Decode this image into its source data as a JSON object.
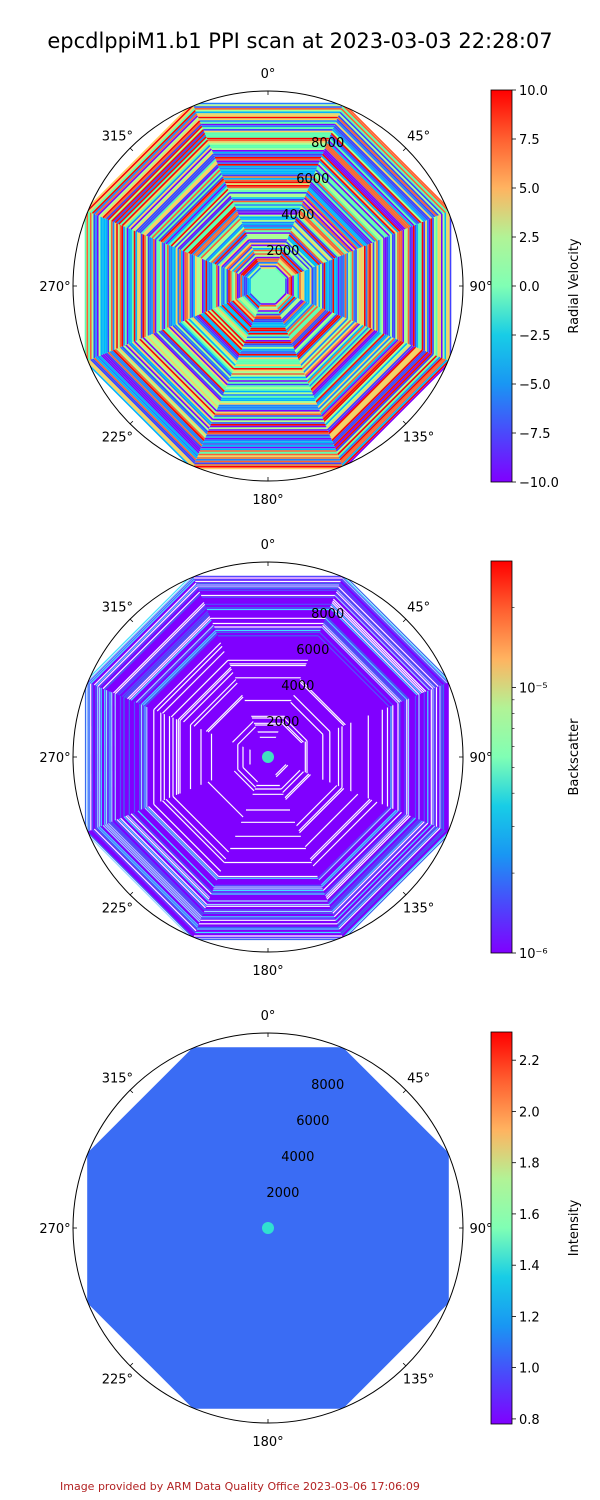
{
  "title": "epcdlppiM1.b1 PPI scan at 2023-03-03 22:28:07",
  "credit": "Image provided by ARM Data Quality Office 2023-03-06 17:06:09",
  "chart_data": [
    {
      "type": "heatmap",
      "projection": "polar",
      "colormap": "rainbow",
      "theta_ticks": [
        "0°",
        "45°",
        "90°",
        "135°",
        "180°",
        "225°",
        "270°",
        "315°"
      ],
      "r_ticks": [
        "2000",
        "4000",
        "6000",
        "8000"
      ],
      "r_tick_values": [
        2000,
        4000,
        6000,
        8000
      ],
      "r_max": 10000,
      "colorbar": {
        "label": "Radial Velocity",
        "scale": "linear",
        "range": [
          -10.0,
          10.0
        ],
        "ticks": [
          "10.0",
          "7.5",
          "5.0",
          "2.5",
          "0.0",
          "−2.5",
          "−5.0",
          "−7.5",
          "−10.0"
        ],
        "tick_values": [
          10,
          7.5,
          5,
          2.5,
          0,
          -2.5,
          -5,
          -7.5,
          -10
        ]
      }
    },
    {
      "type": "heatmap",
      "projection": "polar",
      "colormap": "rainbow",
      "theta_ticks": [
        "0°",
        "45°",
        "90°",
        "135°",
        "180°",
        "225°",
        "270°",
        "315°"
      ],
      "r_ticks": [
        "2000",
        "4000",
        "6000",
        "8000"
      ],
      "r_tick_values": [
        2000,
        4000,
        6000,
        8000
      ],
      "r_max": 10000,
      "colorbar": {
        "label": "Backscatter",
        "scale": "log",
        "range": [
          1e-06,
          3e-05
        ],
        "ticks": [
          "10⁻⁵",
          "10⁻⁶"
        ],
        "tick_values": [
          1e-05,
          1e-06
        ]
      }
    },
    {
      "type": "heatmap",
      "projection": "polar",
      "colormap": "rainbow",
      "theta_ticks": [
        "0°",
        "45°",
        "90°",
        "135°",
        "180°",
        "225°",
        "270°",
        "315°"
      ],
      "r_ticks": [
        "2000",
        "4000",
        "6000",
        "8000"
      ],
      "r_tick_values": [
        2000,
        4000,
        6000,
        8000
      ],
      "r_max": 10000,
      "colorbar": {
        "label": "Intensity",
        "scale": "linear",
        "range": [
          0.78,
          2.31
        ],
        "ticks": [
          "2.2",
          "2.0",
          "1.8",
          "1.6",
          "1.4",
          "1.2",
          "1.0",
          "0.8"
        ],
        "tick_values": [
          2.2,
          2.0,
          1.8,
          1.6,
          1.4,
          1.2,
          1.0,
          0.8
        ]
      }
    }
  ]
}
